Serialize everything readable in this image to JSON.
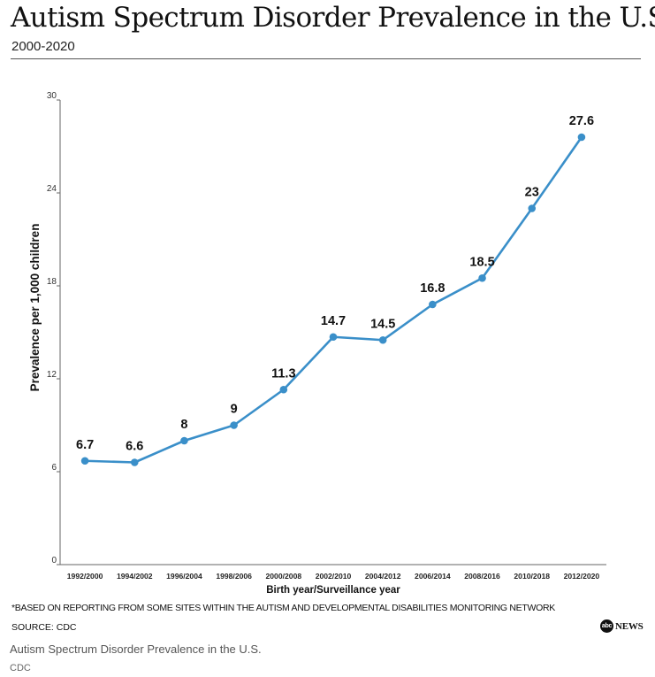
{
  "header": {
    "title": "Autism Spectrum Disorder Prevalence in the U.S.",
    "subtitle": "2000-2020"
  },
  "chart_data": {
    "type": "line",
    "title": "Autism Spectrum Disorder Prevalence in the U.S.",
    "subtitle": "2000-2020",
    "xlabel": "Birth year/Surveillance year",
    "ylabel": "Prevalence per 1,000 children",
    "categories": [
      "1992/2000",
      "1994/2002",
      "1996/2004",
      "1998/2006",
      "2000/2008",
      "2002/2010",
      "2004/2012",
      "2006/2014",
      "2008/2016",
      "2010/2018",
      "2012/2020"
    ],
    "series": [
      {
        "name": "Prevalence",
        "values": [
          6.7,
          6.6,
          8,
          9,
          11.3,
          14.7,
          14.5,
          16.8,
          18.5,
          23,
          27.6
        ],
        "labels": [
          "6.7",
          "6.6",
          "8",
          "9",
          "11.3",
          "14.7",
          "14.5",
          "16.8",
          "18.5",
          "23",
          "27.6"
        ],
        "color": "#3a8fc9"
      }
    ],
    "ylim": [
      0,
      30
    ],
    "yticks": [
      0,
      6,
      12,
      18,
      24,
      30
    ],
    "grid": false,
    "legend": "none"
  },
  "footer": {
    "footnote": "*BASED ON REPORTING FROM SOME SITES WITHIN THE AUTISM AND DEVELOPMENTAL DISABILITIES MONITORING NETWORK",
    "source": "SOURCE: CDC",
    "logo_mark": "abc",
    "logo_text": "NEWS",
    "caption": "Autism Spectrum Disorder Prevalence in the U.S.",
    "credit": "CDC"
  }
}
